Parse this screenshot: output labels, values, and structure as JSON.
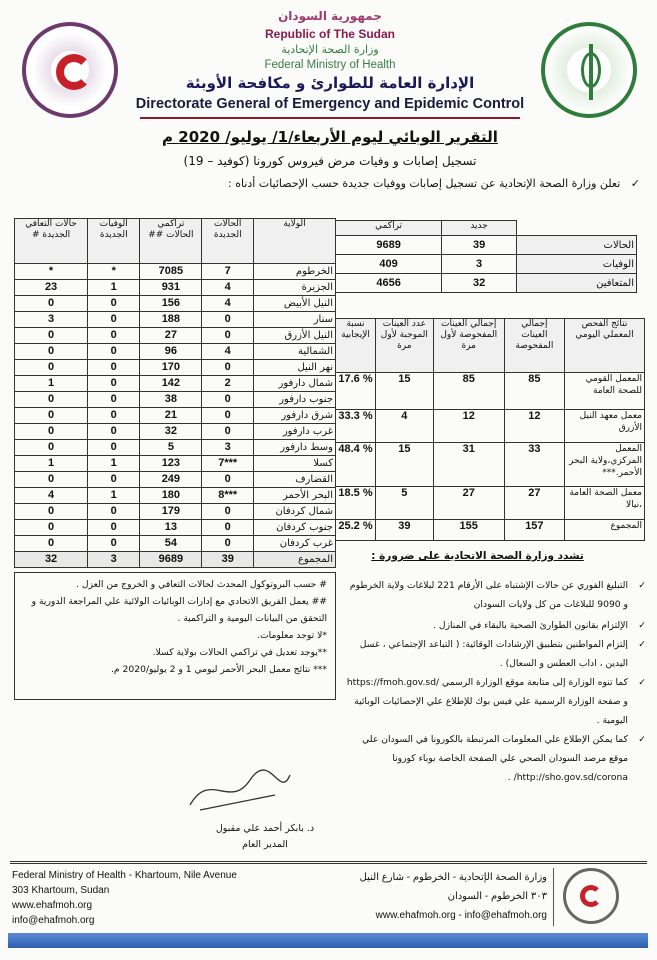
{
  "header": {
    "ar_republic": "جمهورية السودان",
    "en_republic": "Republic of The Sudan",
    "ar_ministry": "وزارة الصحة الإتحادية",
    "en_ministry": "Federal Ministry of Health",
    "ar_directorate": "الإدارة العامة للطوارئ و مكافحة الأوبئة",
    "en_directorate": "Directorate General of Emergency and Epidemic Control"
  },
  "title": "التقرير الوبائي ليوم الأربعاء/1/ يوليو/ 2020 م",
  "subtitle": "تسجيل إصابات و وفيات مرض فيروس كورونا (كوفيد – 19)",
  "intro": "تعلن وزارة الصحة الإتحادية عن تسجيل إصابات ووفيات جديدة حسب الإحصائيات أدناه :",
  "summary": {
    "headers": [
      "",
      "جديد",
      "تراكمي"
    ],
    "rows": [
      [
        "الحالات",
        "39",
        "9689"
      ],
      [
        "الوفيات",
        "3",
        "409"
      ],
      [
        "المتعافين",
        "32",
        "4656"
      ]
    ]
  },
  "states": {
    "headers": [
      "الولاية",
      "الحالات الجديدة",
      "تراكمي الحالات ##",
      "الوفيات الجديدة",
      "حالات التعافي الجديدة #"
    ],
    "rows": [
      [
        "الخرطوم",
        "7",
        "7085",
        "*",
        "*"
      ],
      [
        "الجزيرة",
        "4",
        "931",
        "1",
        "23"
      ],
      [
        "النيل الأبيض",
        "4",
        "156",
        "0",
        "0"
      ],
      [
        "سنار",
        "0",
        "188",
        "0",
        "3"
      ],
      [
        "النيل الأزرق",
        "0",
        "27",
        "0",
        "0"
      ],
      [
        "الشمالية",
        "4",
        "96",
        "0",
        "0"
      ],
      [
        "نهر النيل",
        "0",
        "170",
        "0",
        "0"
      ],
      [
        "شمال دارفور",
        "2",
        "142",
        "0",
        "1"
      ],
      [
        "جنوب دارفور",
        "0",
        "38",
        "0",
        "0"
      ],
      [
        "شرق دارفور",
        "0",
        "21",
        "0",
        "0"
      ],
      [
        "غرب دارفور",
        "0",
        "32",
        "0",
        "0"
      ],
      [
        "وسط دارفور",
        "3",
        "5",
        "0",
        "0"
      ],
      [
        "كسلا",
        "***7",
        "123",
        "1",
        "1"
      ],
      [
        "القضارف",
        "0",
        "249",
        "0",
        "0"
      ],
      [
        "البحر الأحمر",
        "***8",
        "180",
        "1",
        "4"
      ],
      [
        "شمال كردفان",
        "0",
        "179",
        "0",
        "0"
      ],
      [
        "جنوب كردفان",
        "0",
        "13",
        "0",
        "0"
      ],
      [
        "غرب كردفان",
        "0",
        "54",
        "0",
        "0"
      ]
    ],
    "total": [
      "المجموع",
      "39",
      "9689",
      "3",
      "32"
    ]
  },
  "labs": {
    "headers": [
      "نتائج الفحص المعملي اليومي",
      "إجمالي العينات المفحوصة",
      "إجمالي العينات المفحوصة لأول مرة",
      "عدد العينات الموجبة لأول مرة",
      "نسبة الإيجابية"
    ],
    "rows": [
      [
        "المعمل القومي للصحة العامة",
        "85",
        "85",
        "15",
        "% 17.6"
      ],
      [
        "معمل معهد النيل الأزرق",
        "12",
        "12",
        "4",
        "% 33.3"
      ],
      [
        "المعمل المركزي،ولاية البحر الأحمر.***",
        "33",
        "31",
        "15",
        "% 48.4"
      ],
      [
        "معمل الصحة العامة ،نيالا",
        "27",
        "27",
        "5",
        "% 18.5"
      ]
    ],
    "total": [
      "المجموع",
      "157",
      "155",
      "39",
      "% 25.2"
    ]
  },
  "notes": [
    "# حسب البروتوكول المحدث لحالات التعافي و الخروج من العزل .",
    "## يعمل الفريق الاتحادي مع إدارات الوبائيات الولائية علي المراجعة الدورية و التحقق من البيانات اليومية و التراكمية .",
    "*لا توجد معلومات.",
    "**يوجد تعديل في تراكمي الحالات بولاية كسلا.",
    "*** نتائج معمل البحر الأحمر ليومي 1 و 2 يوليو/2020 م."
  ],
  "advice": {
    "heading": "تشدد وزارة الصحة الاتحادية على ضرورة :",
    "items": [
      "التبليغ الفوري عن حالات الإشتباه على الأرقام 221 لبلاغات ولاية الخرطوم و 9090 للبلاغات من كل ولايات السودان",
      "الإلتزام بقانون الطوارئ الصحية بالبقاء في المنازل .",
      "إلتزام المواطنين بتطبيق الإرشادات الوقائية: ( التباعد الإجتماعي ، غسل اليدين ، اداب العطس و السعال) .",
      "كما تنوه الوزارة إلى متابعة موقع الوزارة الرسمي /https://fmoh.gov.sd و صفحة الوزارة الرسمية علي فيس بوك للإطلاع علي الإحصائيات الوبائية اليومية .",
      "كما يمكن الإطلاع علي المعلومات المرتبطة بالكورونا في السودان علي موقع مرصد السودان الصحي علي الصفحة الخاصة بوباء كورونا http://sho.gov.sd/corona/ ."
    ]
  },
  "signature": {
    "name": "د. بابكر أحمد علي مقبول",
    "role": "المدير العام"
  },
  "footer": {
    "en": [
      "Federal Ministry of Health - Khartoum, Nile Avenue",
      "303 Khartoum, Sudan",
      "www.ehafmoh.org",
      "info@ehafmoh.org"
    ],
    "ar": [
      "وزارة الصحة الإتحادية - الخرطوم - شارع النيل",
      "٣٠٣ الخرطوم - السودان",
      "www.ehafmoh.org - info@ehafmoh.org"
    ]
  },
  "colors": {
    "accent_red": "#8b1a2a",
    "ministry_green": "#2f7d3a",
    "footer_blue": "#2e6bc0"
  }
}
